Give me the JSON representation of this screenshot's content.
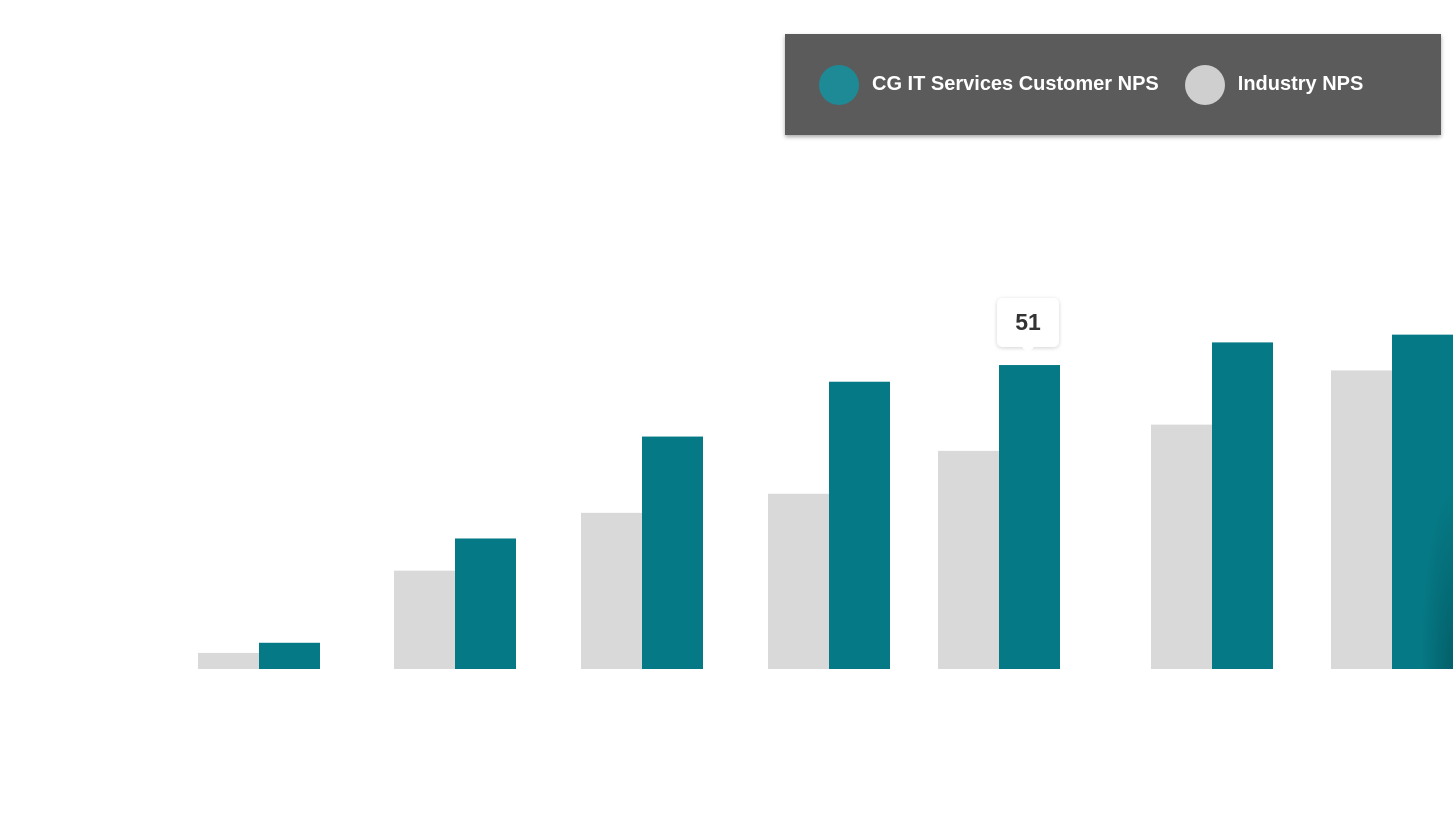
{
  "legend": {
    "items": [
      {
        "label": "CG IT Services Customer NPS",
        "color": "#1e8a96"
      },
      {
        "label": "Industry NPS",
        "color": "#cfcfcf"
      }
    ]
  },
  "tooltip": {
    "value": "51"
  },
  "chart_data": {
    "type": "bar",
    "categories": [
      "",
      "",
      "",
      "",
      "",
      "",
      ""
    ],
    "series": [
      {
        "name": "Industry NPS",
        "color": "#d9d9d9",
        "values": [
          2.7,
          16.5,
          26.2,
          29.4,
          36.6,
          41.0,
          50.1
        ]
      },
      {
        "name": "CG IT Services Customer NPS",
        "color": "#057a86",
        "values": [
          4.4,
          21.9,
          39.0,
          48.2,
          51.0,
          54.8,
          56.1
        ]
      }
    ],
    "ylim": [
      0,
      100
    ],
    "grid": false,
    "legend_position": "top-right"
  }
}
